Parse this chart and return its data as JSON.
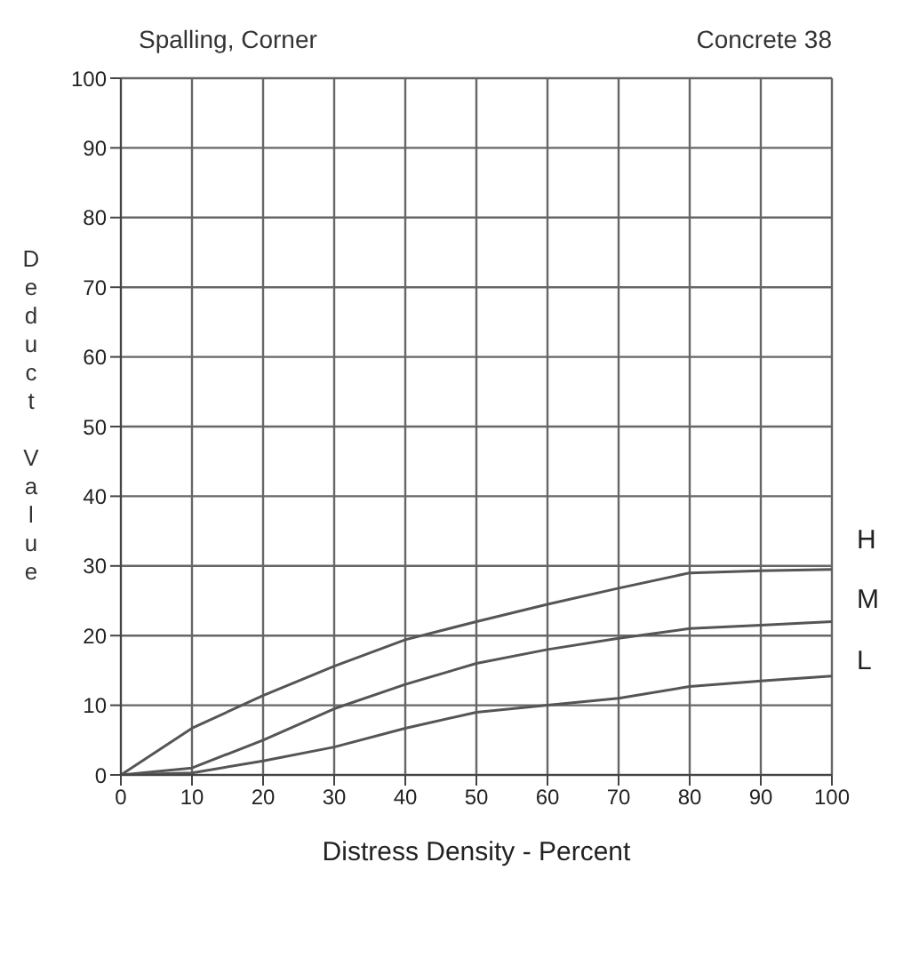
{
  "chart_data": {
    "type": "line",
    "title": "Spalling, Corner",
    "subtitle": "Concrete 38",
    "xlabel": "Distress Density - Percent",
    "ylabel": "Deduct Value",
    "x": [
      0,
      10,
      20,
      30,
      40,
      50,
      60,
      70,
      80,
      90,
      100
    ],
    "series": [
      {
        "name": "H",
        "color": "#555555",
        "values": [
          0,
          6.7,
          11.4,
          15.6,
          19.4,
          22,
          24.5,
          26.8,
          29,
          29.3,
          29.5
        ]
      },
      {
        "name": "M",
        "color": "#555555",
        "values": [
          0,
          1,
          5,
          9.5,
          13,
          16,
          18,
          19.6,
          21,
          21.5,
          22
        ]
      },
      {
        "name": "L",
        "color": "#555555",
        "values": [
          0,
          0.3,
          2,
          4,
          6.7,
          9,
          10,
          11,
          12.7,
          13.5,
          14.2
        ]
      }
    ],
    "xlim": [
      0,
      100
    ],
    "xticks": [
      0,
      10,
      20,
      30,
      40,
      50,
      60,
      70,
      80,
      90,
      100
    ],
    "ylim": [
      0,
      100
    ],
    "yticks": [
      0,
      10,
      20,
      30,
      40,
      50,
      60,
      70,
      80,
      90,
      100
    ],
    "grid": true,
    "legend": false,
    "marker": "none",
    "line_style": "solid"
  }
}
